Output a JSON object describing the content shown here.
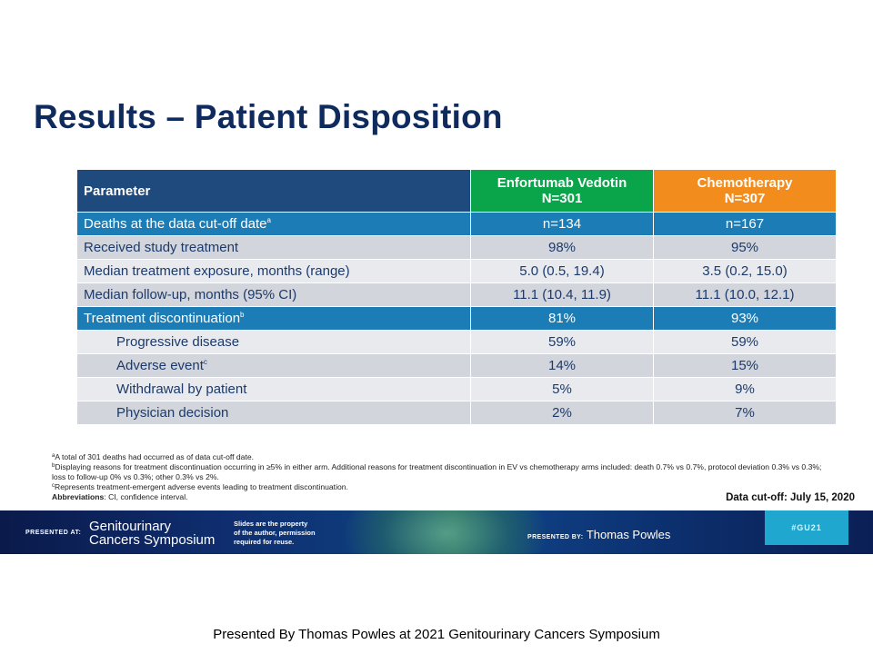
{
  "title": "Results – Patient Disposition",
  "table": {
    "headers": {
      "param": "Parameter",
      "ev_name": "Enfortumab Vedotin",
      "ev_n": "N=301",
      "chemo_name": "Chemotherapy",
      "chemo_n": "N=307"
    },
    "rows": [
      {
        "label": "Deaths at the data cut-off date",
        "sup": "a",
        "ev": "n=134",
        "chemo": "n=167"
      },
      {
        "label": "Received study treatment",
        "sup": "",
        "ev": "98%",
        "chemo": "95%"
      },
      {
        "label": "Median treatment exposure, months (range)",
        "sup": "",
        "ev": "5.0 (0.5, 19.4)",
        "chemo": "3.5 (0.2, 15.0)"
      },
      {
        "label": "Median follow-up, months (95% CI)",
        "sup": "",
        "ev": "11.1 (10.4, 11.9)",
        "chemo": "11.1 (10.0, 12.1)"
      },
      {
        "label": "Treatment discontinuation",
        "sup": "b",
        "ev": "81%",
        "chemo": "93%"
      },
      {
        "label": "Progressive disease",
        "sup": "",
        "ev": "59%",
        "chemo": "59%"
      },
      {
        "label": "Adverse event",
        "sup": "c",
        "ev": "14%",
        "chemo": "15%"
      },
      {
        "label": "Withdrawal by patient",
        "sup": "",
        "ev": "5%",
        "chemo": "9%"
      },
      {
        "label": "Physician decision",
        "sup": "",
        "ev": "2%",
        "chemo": "7%"
      }
    ]
  },
  "footnotes": {
    "a_mark": "a",
    "a": "A total of 301 deaths had occurred as of data cut-off date.",
    "b_mark": "b",
    "b": "Displaying reasons for treatment discontinuation occurring in ≥5% in either arm. Additional reasons for treatment discontinuation in EV vs chemotherapy arms included: death 0.7% vs 0.7%, protocol deviation 0.3% vs 0.3%; loss to follow-up 0% vs 0.3%; other 0.3% vs 2%.",
    "c_mark": "c",
    "c": "Represents treatment-emergent adverse events leading to treatment discontinuation.",
    "abbr_label": "Abbreviations",
    "abbr": ": CI, confidence interval."
  },
  "cutoff": "Data cut-off: July 15, 2020",
  "banner": {
    "presented_at": "PRESENTED AT:",
    "logo_line1": "Genitourinary",
    "logo_line2": "Cancers Symposium",
    "notice_line1": "Slides are the property",
    "notice_line2": "of the author, permission",
    "notice_line3": "required for reuse.",
    "presented_by_label": "PRESENTED BY:",
    "presenter": "Thomas Powles",
    "hashtag": "#GU21"
  },
  "caption": "Presented By Thomas Powles at 2021 Genitourinary  Cancers Symposium",
  "colors": {
    "title": "#0f2a5c",
    "ev_header": "#0aa54a",
    "chemo_header": "#f28c1c",
    "param_header": "#1e4a7e",
    "highlight_row": "#1c7db6"
  }
}
